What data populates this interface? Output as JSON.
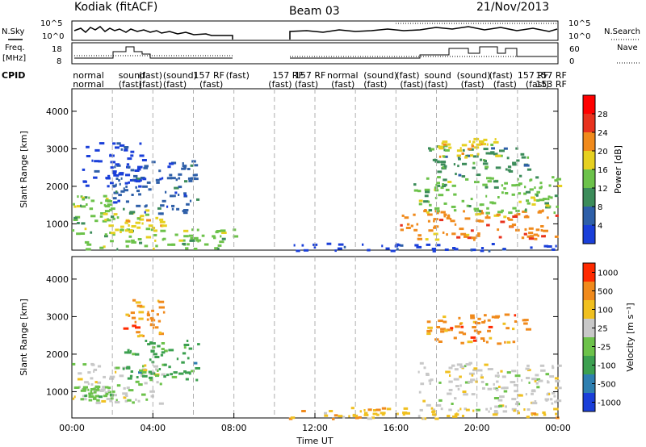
{
  "header": {
    "radar": "Kodiak (fitACF)",
    "beam": "Beam 03",
    "date": "21/Nov/2013"
  },
  "strips": {
    "nsky_label": "N.Sky",
    "nsearch_label": "N.Search",
    "nsky_ticks": [
      "10^5",
      "10^0"
    ],
    "nsearch_ticks": [
      "10^5",
      "10^0"
    ],
    "freq_label_1": "Freq.",
    "freq_label_2": "[MHz]",
    "freq_ticks": [
      "18",
      "8"
    ],
    "nave_label": "Nave",
    "nave_ticks": [
      "60",
      "0"
    ],
    "cpid_label": "CPID"
  },
  "cpid_text": [
    {
      "time": 0.05,
      "row": 1,
      "text": "normal"
    },
    {
      "time": 0.05,
      "row": 2,
      "text": "normal"
    },
    {
      "time": 2.3,
      "row": 1,
      "text": "sound"
    },
    {
      "time": 2.3,
      "row": 2,
      "text": "(fast)"
    },
    {
      "time": 3.3,
      "row": 1,
      "text": "(fast)"
    },
    {
      "time": 3.3,
      "row": 2,
      "text": "(fast)"
    },
    {
      "time": 4.5,
      "row": 1,
      "text": "(sound)"
    },
    {
      "time": 4.5,
      "row": 2,
      "text": "(fast)"
    },
    {
      "time": 6.0,
      "row": 1,
      "text": "157 RF"
    },
    {
      "time": 6.3,
      "row": 2,
      "text": "(fast)"
    },
    {
      "time": 7.6,
      "row": 1,
      "text": "(fast)"
    },
    {
      "time": 9.9,
      "row": 1,
      "text": "157 RF"
    },
    {
      "time": 9.7,
      "row": 2,
      "text": "(fast)"
    },
    {
      "time": 11.0,
      "row": 1,
      "text": "157 RF"
    },
    {
      "time": 11.0,
      "row": 2,
      "text": "(fast)"
    },
    {
      "time": 12.6,
      "row": 1,
      "text": "normal"
    },
    {
      "time": 12.8,
      "row": 2,
      "text": "(fast)"
    },
    {
      "time": 14.4,
      "row": 1,
      "text": "(sound)"
    },
    {
      "time": 14.4,
      "row": 2,
      "text": "(fast)"
    },
    {
      "time": 16.0,
      "row": 1,
      "text": "(fast)"
    },
    {
      "time": 16.2,
      "row": 2,
      "text": "(fast)"
    },
    {
      "time": 17.4,
      "row": 1,
      "text": "sound"
    },
    {
      "time": 17.4,
      "row": 2,
      "text": "(fast)"
    },
    {
      "time": 19.0,
      "row": 1,
      "text": "(sound)"
    },
    {
      "time": 19.2,
      "row": 2,
      "text": "(fast)"
    },
    {
      "time": 20.6,
      "row": 1,
      "text": "(fast)"
    },
    {
      "time": 20.8,
      "row": 2,
      "text": "(fast)"
    },
    {
      "time": 22.0,
      "row": 1,
      "text": "157 RF"
    },
    {
      "time": 22.4,
      "row": 2,
      "text": "(fast)"
    },
    {
      "time": 22.9,
      "row": 1,
      "text": "157 RF"
    },
    {
      "time": 22.9,
      "row": 2,
      "text": "153 RF"
    }
  ],
  "chart_data": [
    {
      "type": "heatmap",
      "name": "power",
      "x_ticks": [
        "00:00",
        "04:00",
        "08:00",
        "12:00",
        "16:00",
        "20:00",
        "00:00"
      ],
      "xlim": [
        0,
        24
      ],
      "ylabel": "Slant Range [km]",
      "ylim": [
        300,
        4600
      ],
      "y_ticks": [
        1000,
        2000,
        3000,
        4000
      ],
      "colorbar_label": "Power [dB]",
      "colorbar_ticks": [
        "4",
        "8",
        "12",
        "16",
        "20",
        "24",
        "28"
      ],
      "colorbar_range": [
        0,
        32
      ],
      "colors": [
        "#1a3fd9",
        "#2e5fa8",
        "#3c8c5a",
        "#6cc24a",
        "#e6d020",
        "#f08a1c",
        "#e8321e",
        "#ff0000"
      ],
      "data_gap": [
        8.0,
        10.7
      ],
      "regions": [
        {
          "t0": 0.0,
          "t1": 8.0,
          "r0": 350,
          "r1": 900,
          "level": 3
        },
        {
          "t0": 0.0,
          "t1": 2.0,
          "r0": 1000,
          "r1": 1800,
          "level": 3
        },
        {
          "t0": 1.5,
          "t1": 4.5,
          "r0": 800,
          "r1": 1400,
          "level": 4
        },
        {
          "t0": 2.0,
          "t1": 6.2,
          "r0": 1300,
          "r1": 2700,
          "level": 1
        },
        {
          "t0": 0.5,
          "t1": 3.5,
          "r0": 2000,
          "r1": 3200,
          "level": 0
        },
        {
          "t0": 16.2,
          "t1": 24.0,
          "r0": 600,
          "r1": 1400,
          "level": 5
        },
        {
          "t0": 16.8,
          "t1": 24.0,
          "r0": 1300,
          "r1": 2300,
          "level": 3
        },
        {
          "t0": 17.5,
          "t1": 22.5,
          "r0": 2300,
          "r1": 3100,
          "level": 2
        },
        {
          "t0": 18.0,
          "t1": 21.0,
          "r0": 2800,
          "r1": 3300,
          "level": 4
        },
        {
          "t0": 10.7,
          "t1": 24.0,
          "r0": 300,
          "r1": 500,
          "level": 0
        }
      ]
    },
    {
      "type": "heatmap",
      "name": "velocity",
      "x_ticks": [
        "00:00",
        "04:00",
        "08:00",
        "12:00",
        "16:00",
        "20:00",
        "00:00"
      ],
      "xlim": [
        0,
        24
      ],
      "xlabel": "Time UT",
      "ylabel": "Slant Range [km]",
      "ylim": [
        300,
        4600
      ],
      "y_ticks": [
        1000,
        2000,
        3000,
        4000
      ],
      "colorbar_label": "Velocity [m s⁻¹]",
      "colorbar_ticks": [
        "1000",
        "500",
        "100",
        "25",
        "-25",
        "-100",
        "-500",
        "-1000"
      ],
      "colors": [
        "#1a3fd9",
        "#2e7fb0",
        "#3ca050",
        "#6cc24a",
        "#c8c8c8",
        "#f0c020",
        "#f08a1c",
        "#ff2a00"
      ],
      "data_gap": [
        8.0,
        10.7
      ],
      "regions": [
        {
          "t0": 0.0,
          "t1": 4.5,
          "r0": 700,
          "r1": 1800,
          "level": 4
        },
        {
          "t0": 0.0,
          "t1": 2.0,
          "r0": 800,
          "r1": 1200,
          "level": 3
        },
        {
          "t0": 2.5,
          "t1": 6.2,
          "r0": 1300,
          "r1": 2400,
          "level": 2
        },
        {
          "t0": 2.5,
          "t1": 4.5,
          "r0": 2500,
          "r1": 3500,
          "level": 6
        },
        {
          "t0": 17.0,
          "t1": 24.0,
          "r0": 500,
          "r1": 1800,
          "level": 4
        },
        {
          "t0": 17.5,
          "t1": 22.5,
          "r0": 2300,
          "r1": 3100,
          "level": 6
        },
        {
          "t0": 10.7,
          "t1": 24.0,
          "r0": 300,
          "r1": 600,
          "level": 5
        }
      ]
    }
  ]
}
